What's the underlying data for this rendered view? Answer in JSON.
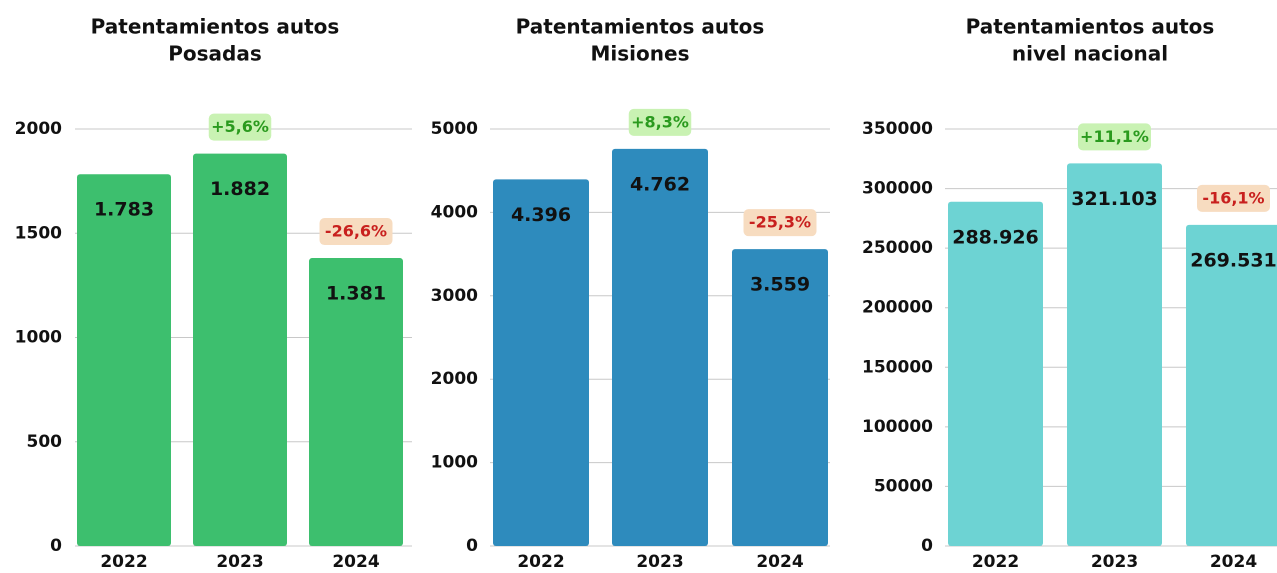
{
  "chart_data": [
    {
      "type": "bar",
      "title": [
        "Patentamientos autos",
        "Posadas"
      ],
      "categories": [
        "2022",
        "2023",
        "2024"
      ],
      "values": [
        1783,
        1882,
        1381
      ],
      "value_labels": [
        "1.783",
        "1.882",
        "1.381"
      ],
      "annotations": [
        null,
        "+5,6%",
        "-26,6%"
      ],
      "color": "#3dbf6e",
      "ylim": [
        0,
        2000
      ],
      "yticks": [
        0,
        500,
        1000,
        1500,
        2000
      ],
      "grid": true
    },
    {
      "type": "bar",
      "title": [
        "Patentamientos autos",
        "Misiones"
      ],
      "categories": [
        "2022",
        "2023",
        "2024"
      ],
      "values": [
        4396,
        4762,
        3559
      ],
      "value_labels": [
        "4.396",
        "4.762",
        "3.559"
      ],
      "annotations": [
        null,
        "+8,3%",
        "-25,3%"
      ],
      "color": "#2e8bbd",
      "ylim": [
        0,
        5000
      ],
      "yticks": [
        0,
        1000,
        2000,
        3000,
        4000,
        5000
      ],
      "grid": true
    },
    {
      "type": "bar",
      "title": [
        "Patentamientos autos",
        "nivel nacional"
      ],
      "categories": [
        "2022",
        "2023",
        "2024"
      ],
      "values": [
        288926,
        321103,
        269531
      ],
      "value_labels": [
        "288.926",
        "321.103",
        "269.531"
      ],
      "annotations": [
        null,
        "+11,1%",
        "-16,1%"
      ],
      "color": "#6dd3d3",
      "ylim": [
        0,
        350000
      ],
      "yticks": [
        0,
        50000,
        100000,
        150000,
        200000,
        250000,
        300000,
        350000
      ],
      "grid": true
    }
  ]
}
